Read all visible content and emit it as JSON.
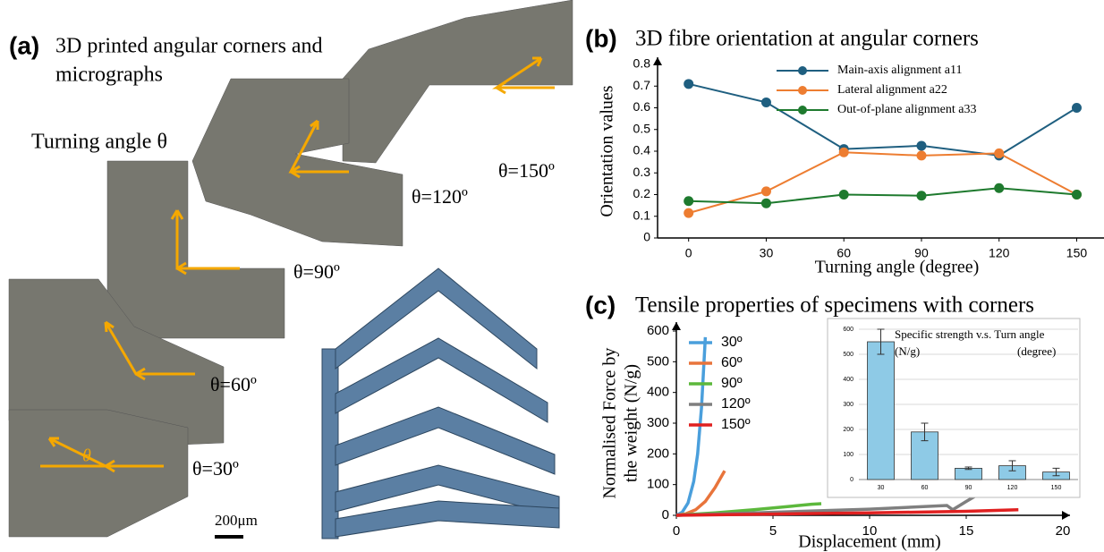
{
  "panel_a": {
    "label": "(a)",
    "title_lines": [
      "3D printed angular corners and",
      "micrographs"
    ],
    "turning_angle": "Turning angle θ",
    "angle_labels": [
      "θ=150º",
      "θ=120º",
      "θ=90º",
      "θ=60º",
      "θ=30º"
    ],
    "theta": "θ",
    "scale_bar": "200μm"
  },
  "chart_data": [
    {
      "type": "line",
      "panel_label": "(b)",
      "title": "3D fibre orientation at angular corners",
      "xlabel": "Turning angle (degree)",
      "ylabel": "Orientation values",
      "x": [
        0,
        30,
        60,
        90,
        120,
        150
      ],
      "xlim": [
        -12,
        173
      ],
      "xticks": [
        0,
        30,
        60,
        90,
        120,
        150
      ],
      "ylim": [
        0,
        0.8
      ],
      "yticks": [
        0,
        0.1,
        0.2,
        0.3,
        0.4,
        0.5,
        0.6,
        0.7,
        0.8
      ],
      "legend": "upper right",
      "markers": true,
      "series": [
        {
          "name": "Main-axis alignment a11",
          "color": "#1f5f80",
          "values": [
            0.71,
            0.625,
            0.41,
            0.425,
            0.38,
            0.6
          ]
        },
        {
          "name": "Lateral alignment a22",
          "color": "#ed7d31",
          "values": [
            0.115,
            0.215,
            0.395,
            0.38,
            0.39,
            0.2
          ]
        },
        {
          "name": "Out-of-plane alignment a33",
          "color": "#1e7a2e",
          "values": [
            0.17,
            0.16,
            0.2,
            0.195,
            0.23,
            0.2
          ]
        }
      ]
    },
    {
      "type": "line",
      "panel_label": "(c)",
      "title": "Tensile properties of specimens with corners",
      "xlabel": "Displacement (mm)",
      "ylabel": [
        "Normalised Force by",
        "the weight (N/g)"
      ],
      "xlim": [
        0,
        20
      ],
      "xticks": [
        0,
        5,
        10,
        15,
        20
      ],
      "ylim": [
        0,
        600
      ],
      "yticks": [
        0,
        100,
        200,
        300,
        400,
        500,
        600
      ],
      "legend": "upper left",
      "markers": false,
      "series": [
        {
          "name": "30º",
          "color": "#4a9fdc",
          "x": [
            0,
            0.3,
            0.6,
            0.9,
            1.1,
            1.3,
            1.5
          ],
          "values": [
            0,
            10,
            40,
            110,
            200,
            350,
            580
          ]
        },
        {
          "name": "60º",
          "color": "#e8743b",
          "x": [
            0,
            0.5,
            1,
            1.5,
            2,
            2.5
          ],
          "values": [
            0,
            5,
            18,
            45,
            90,
            145
          ]
        },
        {
          "name": "90º",
          "color": "#5cb83c",
          "x": [
            0,
            2,
            4,
            6,
            7,
            7.5
          ],
          "values": [
            0,
            8,
            18,
            30,
            36,
            38
          ]
        },
        {
          "name": "120º",
          "color": "#7f7f7f",
          "x": [
            0,
            5,
            10,
            14,
            14.3,
            15,
            15.8
          ],
          "values": [
            0,
            10,
            20,
            32,
            18,
            45,
            75
          ]
        },
        {
          "name": "150º",
          "color": "#e02020",
          "x": [
            0,
            5,
            10,
            15,
            17.7
          ],
          "values": [
            0,
            4,
            8,
            13,
            18
          ]
        }
      ]
    },
    {
      "type": "bar",
      "title": "Specific strength v.s. Turn angle",
      "ylabel": "(N/g)",
      "xlabel": "(degree)",
      "categories": [
        "30",
        "60",
        "90",
        "120",
        "150"
      ],
      "values": [
        550,
        190,
        45,
        55,
        30
      ],
      "errors": [
        50,
        35,
        5,
        20,
        15
      ],
      "color": "#8ecae6",
      "ylim": [
        0,
        600
      ],
      "yticks": [
        0,
        100,
        200,
        300,
        400,
        500,
        600
      ],
      "grid": true
    }
  ]
}
